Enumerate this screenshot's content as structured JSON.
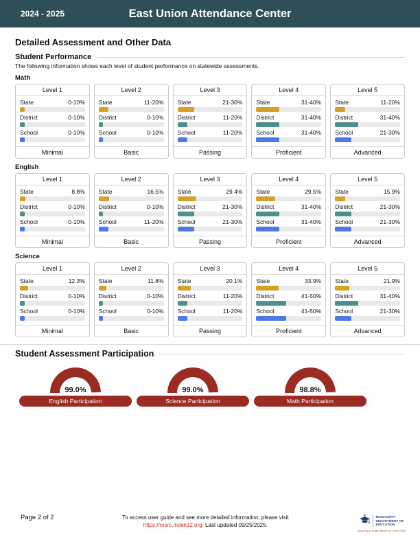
{
  "header": {
    "year": "2024 - 2025",
    "title": "East Union Attendance Center"
  },
  "page_title": "Detailed Assessment and Other Data",
  "performance": {
    "section_title": "Student Performance",
    "description": "The following information shows each level of student performance on statewide assessments.",
    "row_labels": [
      "State",
      "District",
      "School"
    ],
    "subjects": [
      {
        "name": "Math",
        "levels": [
          {
            "title": "Level 1",
            "footer": "Minimal",
            "values": [
              "0-10%",
              "0-10%",
              "0-10%"
            ]
          },
          {
            "title": "Level 2",
            "footer": "Basic",
            "values": [
              "11-20%",
              "0-10%",
              "0-10%"
            ]
          },
          {
            "title": "Level 3",
            "footer": "Passing",
            "values": [
              "21-30%",
              "11-20%",
              "11-20%"
            ]
          },
          {
            "title": "Level 4",
            "footer": "Proficient",
            "values": [
              "31-40%",
              "31-40%",
              "31-40%"
            ]
          },
          {
            "title": "Level 5",
            "footer": "Advanced",
            "values": [
              "11-20%",
              "31-40%",
              "21-30%"
            ]
          }
        ]
      },
      {
        "name": "English",
        "levels": [
          {
            "title": "Level 1",
            "footer": "Minimal",
            "values": [
              "8.8%",
              "0-10%",
              "0-10%"
            ]
          },
          {
            "title": "Level 2",
            "footer": "Basic",
            "values": [
              "16.5%",
              "0-10%",
              "11-20%"
            ]
          },
          {
            "title": "Level 3",
            "footer": "Passing",
            "values": [
              "29.4%",
              "21-30%",
              "21-30%"
            ]
          },
          {
            "title": "Level 4",
            "footer": "Proficient",
            "values": [
              "29.5%",
              "31-40%",
              "31-40%"
            ]
          },
          {
            "title": "Level 5",
            "footer": "Advanced",
            "values": [
              "15.9%",
              "21-30%",
              "21-30%"
            ]
          }
        ]
      },
      {
        "name": "Science",
        "levels": [
          {
            "title": "Level 1",
            "footer": "Minimal",
            "values": [
              "12.3%",
              "0-10%",
              "0-10%"
            ]
          },
          {
            "title": "Level 2",
            "footer": "Basic",
            "values": [
              "11.8%",
              "0-10%",
              "0-10%"
            ]
          },
          {
            "title": "Level 3",
            "footer": "Passing",
            "values": [
              "20.1%",
              "11-20%",
              "11-20%"
            ]
          },
          {
            "title": "Level 4",
            "footer": "Proficient",
            "values": [
              "33.9%",
              "41-50%",
              "41-50%"
            ]
          },
          {
            "title": "Level 5",
            "footer": "Advanced",
            "values": [
              "21.9%",
              "31-40%",
              "21-30%"
            ]
          }
        ]
      }
    ]
  },
  "participation": {
    "section_title": "Student Assessment Participation",
    "gauges": [
      {
        "label": "English Participation",
        "value": "99.0%",
        "percent": 99.0
      },
      {
        "label": "Science Participation",
        "value": "99.0%",
        "percent": 99.0
      },
      {
        "label": "Math Participation",
        "value": "98.8%",
        "percent": 98.8
      }
    ]
  },
  "footer": {
    "page_label": "Page 2 of 2",
    "note_line1": "To access user guide and see more detailed information, please visit",
    "note_link": "https://msrc.mdek12.org.",
    "note_after_link": " Last updated 09/25/2025.",
    "logo": {
      "icon": "graduation-cap-icon",
      "org_lines": [
        "Mississippi",
        "Department of",
        "Education"
      ],
      "tagline": "Ensuring a bright future for every child"
    }
  },
  "colors": {
    "header_bg": "#2d4f58",
    "state_bar": "#d6a126",
    "district_bar": "#4b908e",
    "school_bar": "#4d79e8",
    "track": "#e9e9e9",
    "gauge": "#9c2b23",
    "gauge_rest": "#e0e0e0",
    "link": "#c8342b"
  }
}
